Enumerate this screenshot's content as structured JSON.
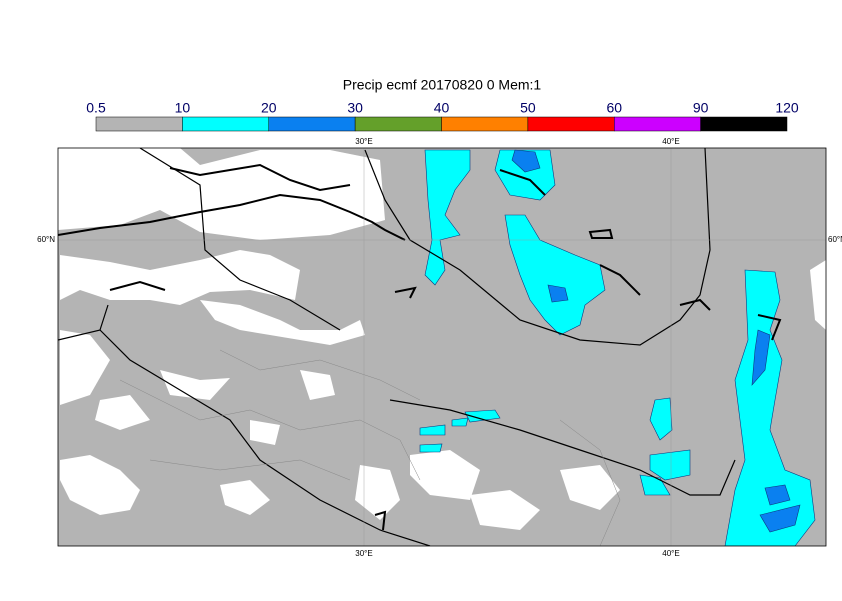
{
  "title": "Precip ecmf 20170820 0 Mem:1",
  "colorbar": {
    "levels": [
      "0.5",
      "10",
      "20",
      "30",
      "40",
      "50",
      "60",
      "90",
      "120"
    ],
    "colors": [
      "#b4b4b4",
      "#00ffff",
      "#0a80f0",
      "#64a02a",
      "#ff8000",
      "#ff0000",
      "#cc00ff",
      "#000000"
    ]
  },
  "graticule": {
    "lon_labels": [
      "30°E",
      "40°E"
    ],
    "lat_label": "60°N"
  }
}
